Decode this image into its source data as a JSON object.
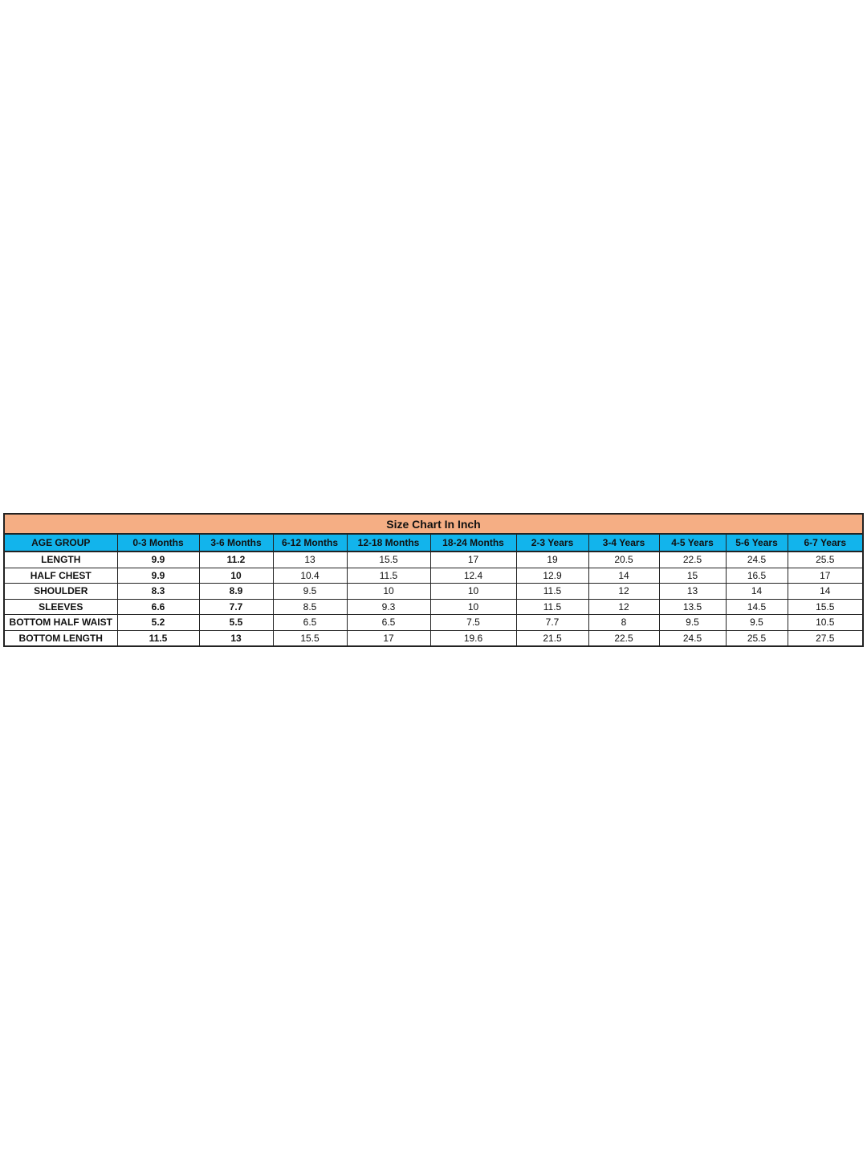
{
  "title": "Size Chart In Inch",
  "colors": {
    "title_bg": "#F5AE84",
    "header_bg": "#12B4EC"
  },
  "columns": [
    "AGE GROUP",
    "0-3 Months",
    "3-6 Months",
    "6-12 Months",
    "12-18 Months",
    "18-24 Months",
    "2-3 Years",
    "3-4 Years",
    "4-5 Years",
    "5-6 Years",
    "6-7 Years"
  ],
  "rows": [
    {
      "label": "LENGTH",
      "values": [
        "9.9",
        "11.2",
        "13",
        "15.5",
        "17",
        "19",
        "20.5",
        "22.5",
        "24.5",
        "25.5"
      ]
    },
    {
      "label": "HALF CHEST",
      "values": [
        "9.9",
        "10",
        "10.4",
        "11.5",
        "12.4",
        "12.9",
        "14",
        "15",
        "16.5",
        "17"
      ]
    },
    {
      "label": "SHOULDER",
      "values": [
        "8.3",
        "8.9",
        "9.5",
        "10",
        "10",
        "11.5",
        "12",
        "13",
        "14",
        "14"
      ]
    },
    {
      "label": "SLEEVES",
      "values": [
        "6.6",
        "7.7",
        "8.5",
        "9.3",
        "10",
        "11.5",
        "12",
        "13.5",
        "14.5",
        "15.5"
      ]
    },
    {
      "label": "BOTTOM  HALF WAIST",
      "values": [
        "5.2",
        "5.5",
        "6.5",
        "6.5",
        "7.5",
        "7.7",
        "8",
        "9.5",
        "9.5",
        "10.5"
      ]
    },
    {
      "label": "BOTTOM LENGTH",
      "values": [
        "11.5",
        "13",
        "15.5",
        "17",
        "19.6",
        "21.5",
        "22.5",
        "24.5",
        "25.5",
        "27.5"
      ]
    }
  ]
}
